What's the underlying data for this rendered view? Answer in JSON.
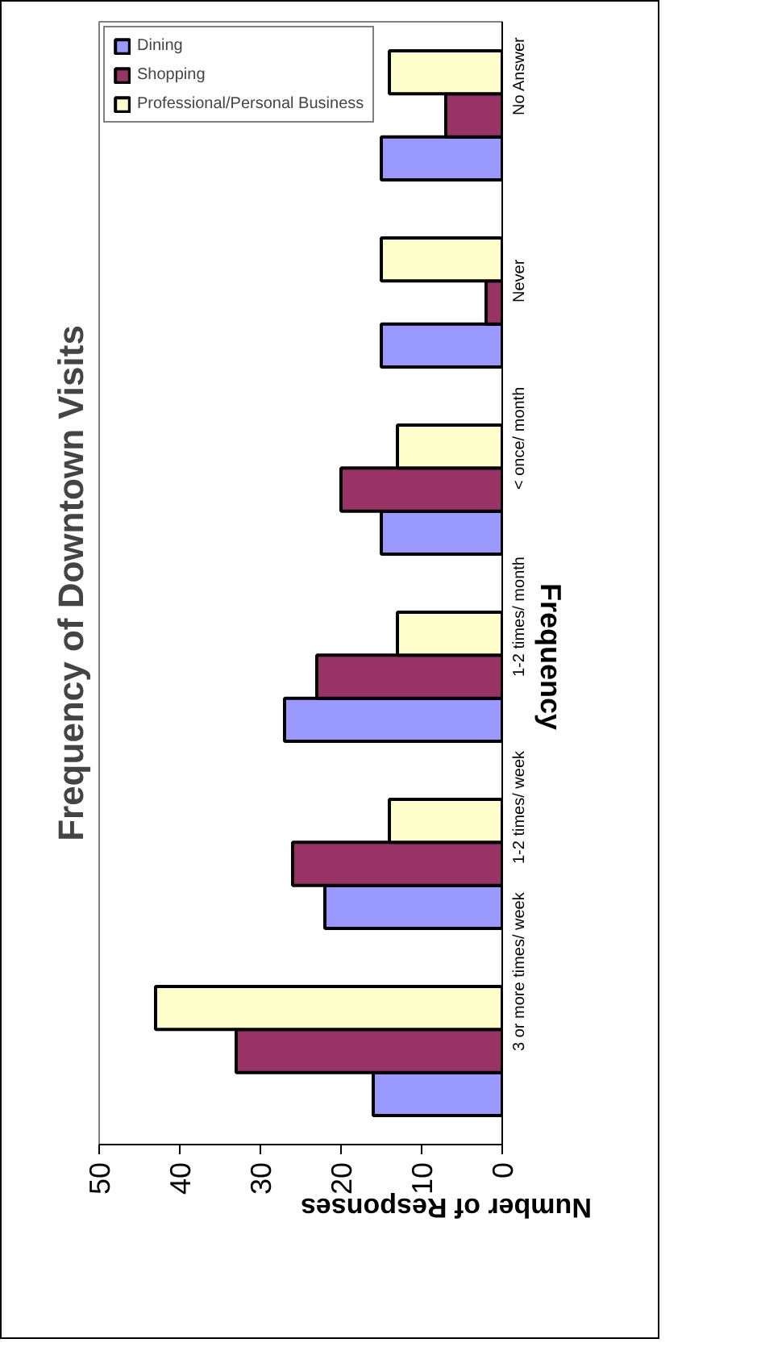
{
  "chart_data": {
    "type": "bar",
    "orientation": "horizontal",
    "title": "Frequency of Downtown Visits",
    "xlabel": "Number of Responses",
    "ylabel": "Frequency",
    "categories": [
      "No Answer",
      "Never",
      "< once/ month",
      "1-2 times/ month",
      "1-2 times/ week",
      "3 or more times/ week"
    ],
    "series": [
      {
        "name": "Dining",
        "color": "#9999ff",
        "values": [
          15,
          15,
          15,
          27,
          22,
          16
        ]
      },
      {
        "name": "Shopping",
        "color": "#993366",
        "values": [
          7,
          2,
          20,
          23,
          26,
          33
        ]
      },
      {
        "name": "Professional/Personal Business",
        "color": "#ffffcc",
        "values": [
          14,
          15,
          13,
          13,
          14,
          43
        ]
      }
    ],
    "xlim": [
      50,
      0
    ],
    "xticks": [
      50,
      40,
      30,
      20,
      10,
      0
    ],
    "grid": false,
    "legend": "top left"
  }
}
